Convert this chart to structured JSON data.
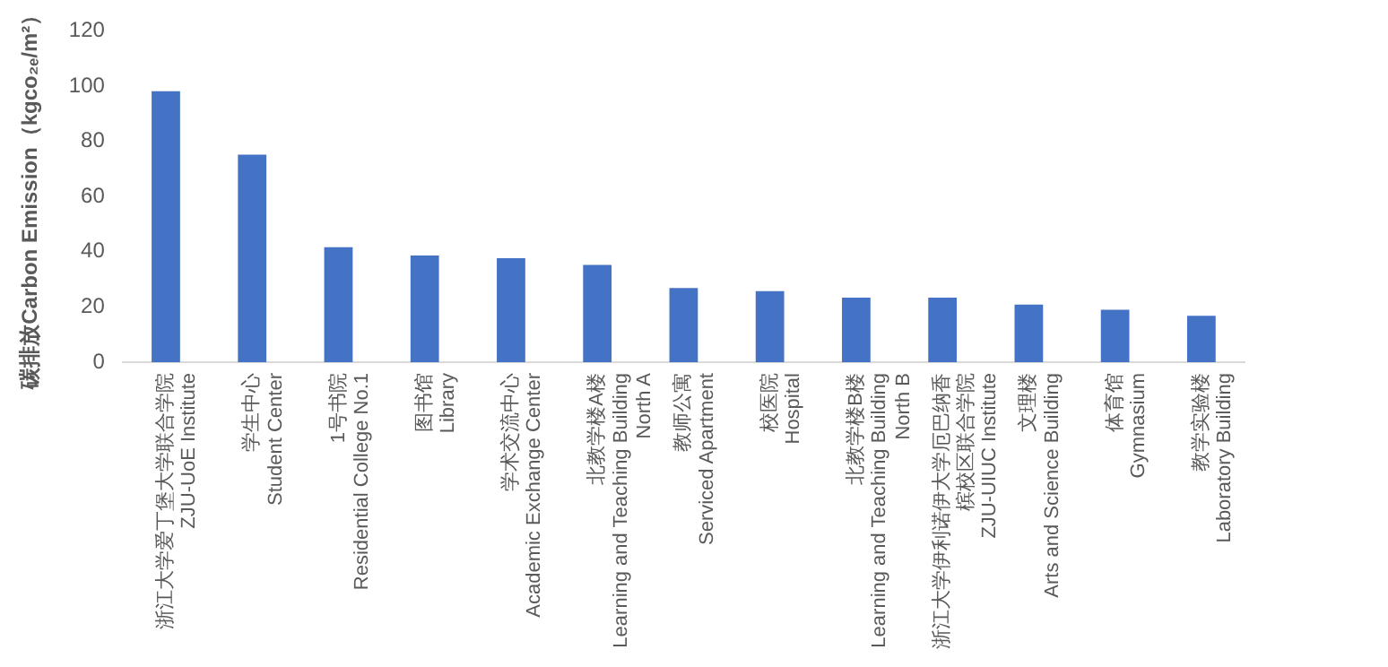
{
  "chart_data": {
    "type": "bar",
    "ylabel": "碳排放Carbon Emission（kgco₂ₑ/m²）",
    "categories": [
      "浙江大学爱丁堡大学联合学院\nZJU-UoE Institute",
      "学生中心\nStudent Center",
      "1号书院\nResidential College No.1",
      "图书馆\nLibrary",
      "学术交流中心\nAcademic Exchange Center",
      "北教学楼A楼\nLearning and Teaching Building\nNorth A",
      "教师公寓\nServiced Apartment",
      "校医院\nHospital",
      "北教学楼B楼\nLearning and Teaching Building\nNorth B",
      "浙江大学伊利诺伊大学厄巴纳香槟校区联合学院\nZJU-UIUC Institute",
      "文理楼\nArts and Science Building",
      "体育馆\nGymnasium",
      "教学实验楼\nLaboratory Building"
    ],
    "values": [
      98.1,
      75.2,
      41.6,
      38.6,
      37.7,
      35.2,
      26.9,
      25.7,
      23.4,
      23.4,
      20.9,
      19.0,
      16.8
    ],
    "color": "#4472c4",
    "ylim": [
      0,
      120
    ],
    "yticks": [
      0,
      20,
      40,
      60,
      80,
      100,
      120
    ],
    "grid": false,
    "legend": false
  }
}
